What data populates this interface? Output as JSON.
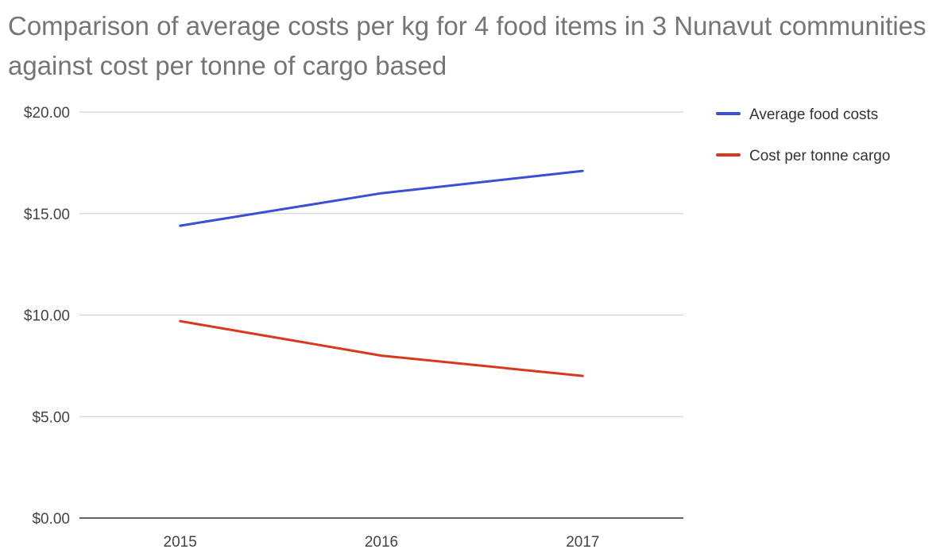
{
  "chart_data": {
    "type": "line",
    "title": "Comparison of average costs per kg for 4 food items in 3 Nunavut communities against cost per tonne of cargo based",
    "xlabel": "",
    "ylabel": "",
    "categories": [
      "2015",
      "2016",
      "2017"
    ],
    "series": [
      {
        "name": "Average food costs",
        "values": [
          14.4,
          16.0,
          17.1
        ],
        "color": "#3b4fd6"
      },
      {
        "name": "Cost per tonne cargo",
        "values": [
          9.7,
          8.0,
          7.0
        ],
        "color": "#d9381e"
      }
    ],
    "ylim": [
      0,
      20
    ],
    "yticks": [
      0,
      5,
      10,
      15,
      20
    ],
    "ytick_labels": [
      "$0.00",
      "$5.00",
      "$10.00",
      "$15.00",
      "$20.00"
    ],
    "grid": true,
    "legend_position": "right"
  }
}
